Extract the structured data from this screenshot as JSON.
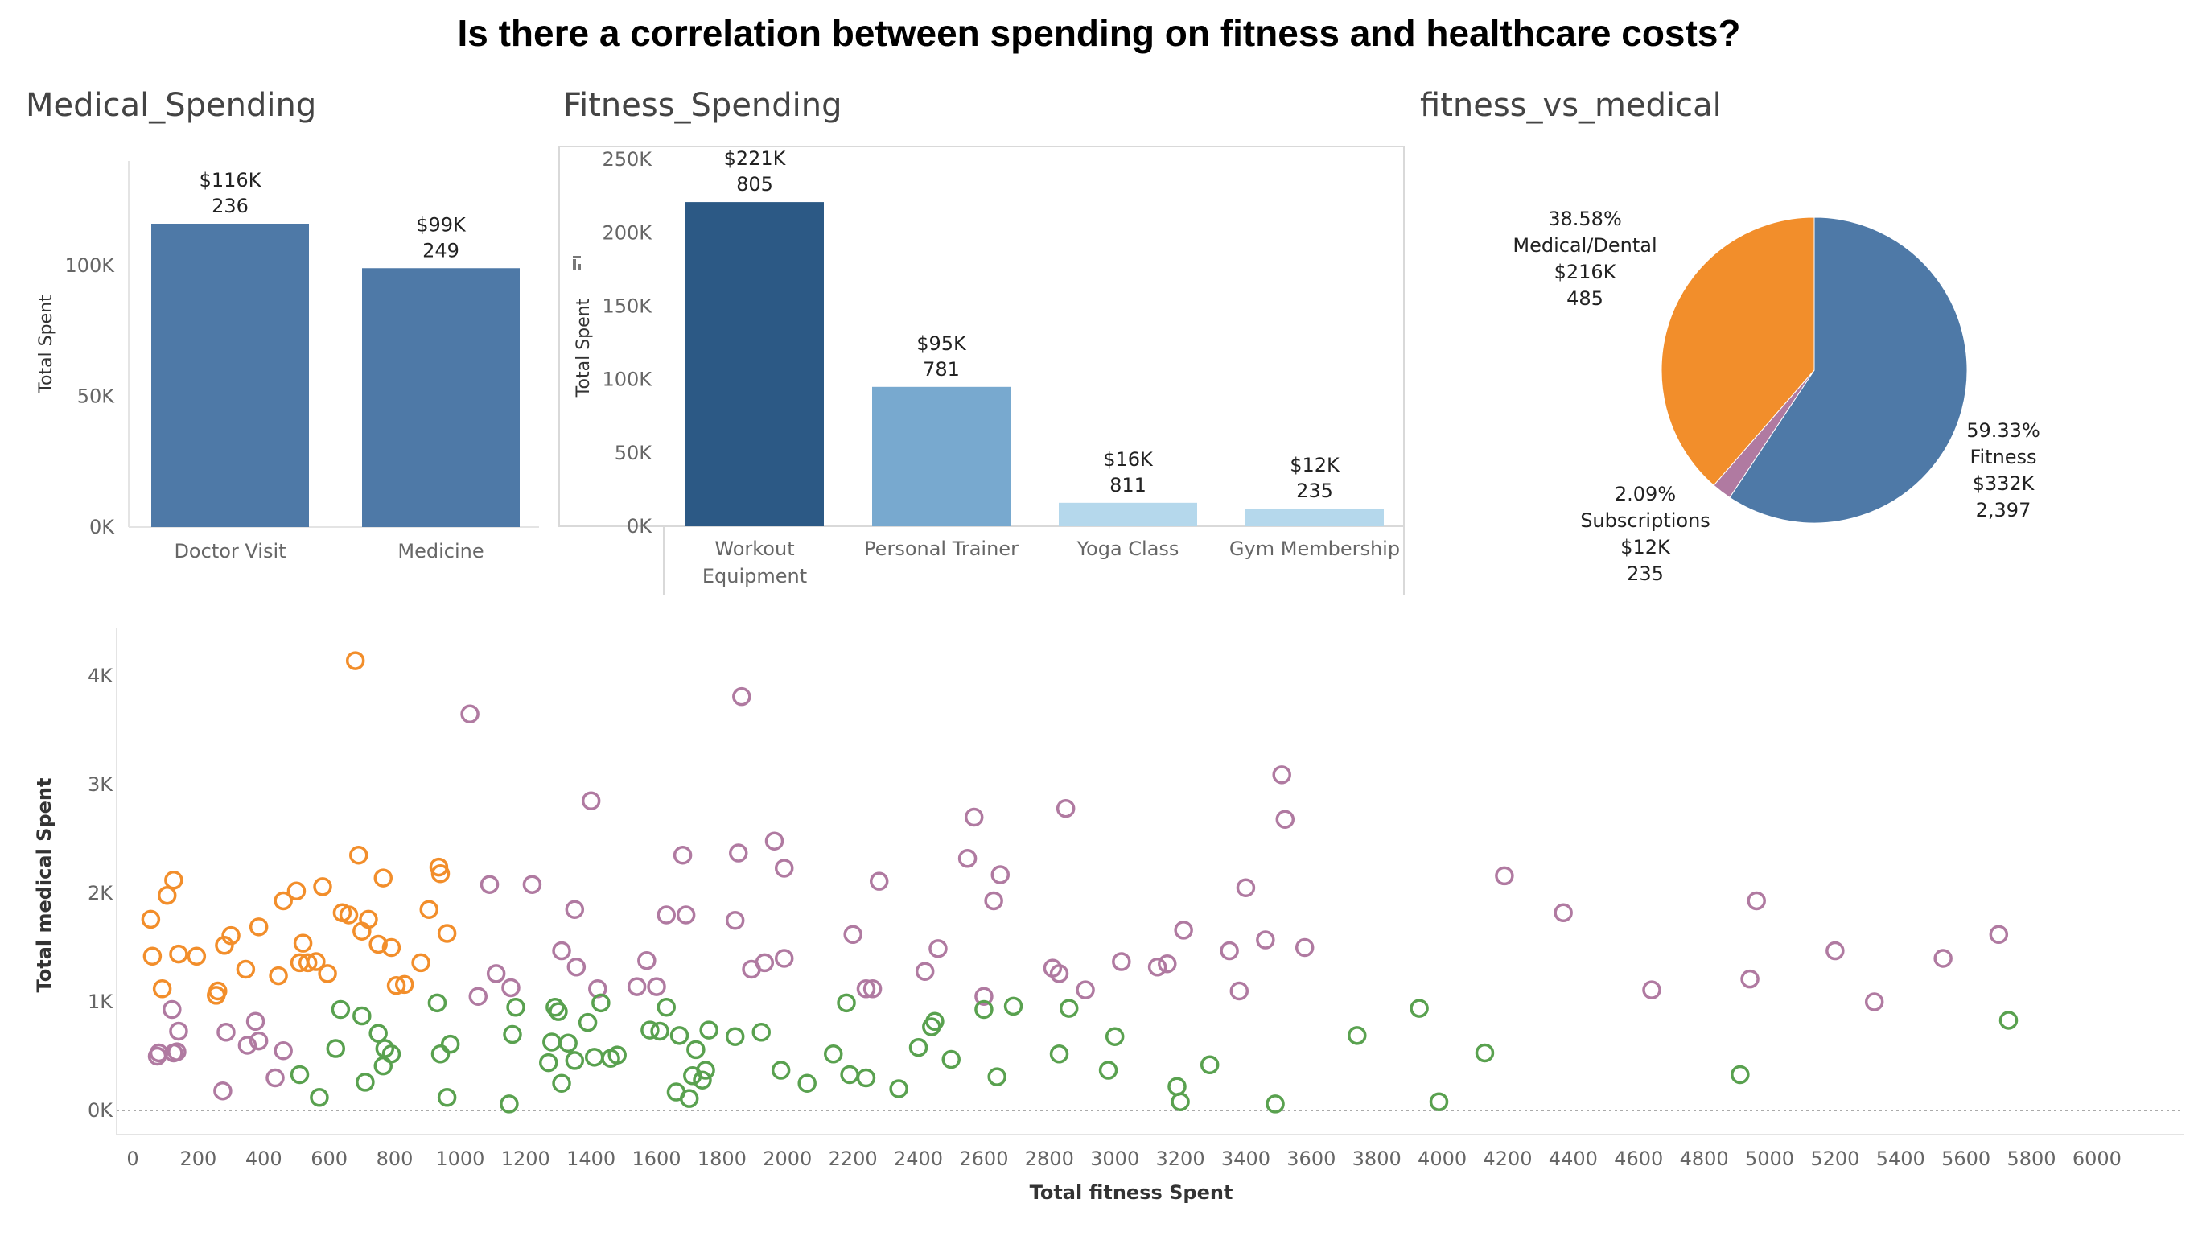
{
  "title": "Is there a correlation between spending on fitness and healthcare costs?",
  "colors": {
    "medical_bar": "#4e79a7",
    "fitness_bars": [
      "#2c5985",
      "#78a9cf",
      "#b5d8ec",
      "#b5d8ec"
    ],
    "pie_fitness": "#4e79a7",
    "pie_medical": "#f28e2b",
    "pie_subscriptions": "#b07aa1",
    "scatter": {
      "orange": "#f28e2b",
      "purple": "#b07aa1",
      "green": "#59a14f"
    }
  },
  "chart_data": [
    {
      "type": "bar",
      "id": "medical",
      "title": "Medical_Spending",
      "ylabel": "Total Spent",
      "categories": [
        "Doctor Visit",
        "Medicine"
      ],
      "values": [
        116000,
        99000
      ],
      "value_labels": [
        "$116K",
        "$99K"
      ],
      "count_labels": [
        "236",
        "249"
      ],
      "yticks": [
        "0K",
        "50K",
        "100K"
      ],
      "ylim": [
        0,
        140000
      ]
    },
    {
      "type": "bar",
      "id": "fitness",
      "title": "Fitness_Spending",
      "ylabel": "Total Spent",
      "categories": [
        "Workout Equipment",
        "Personal Trainer",
        "Yoga Class",
        "Gym Membership"
      ],
      "values": [
        221000,
        95000,
        16000,
        12000
      ],
      "value_labels": [
        "$221K",
        "$95K",
        "$16K",
        "$12K"
      ],
      "count_labels": [
        "805",
        "781",
        "811",
        "235"
      ],
      "yticks": [
        "0K",
        "50K",
        "100K",
        "150K",
        "200K",
        "250K"
      ],
      "ylim": [
        0,
        260000
      ]
    },
    {
      "type": "pie",
      "id": "pie",
      "title": "fitness_vs_medical",
      "slices": [
        {
          "name": "Fitness",
          "percent": 59.33,
          "pct_label": "59.33%",
          "value": "$332K",
          "count": "2,397"
        },
        {
          "name": "Subscriptions",
          "percent": 2.09,
          "pct_label": "2.09%",
          "value": "$12K",
          "count": "235"
        },
        {
          "name": "Medical/Dental",
          "percent": 38.58,
          "pct_label": "38.58%",
          "value": "$216K",
          "count": "485"
        }
      ]
    },
    {
      "type": "scatter",
      "id": "scatter",
      "xlabel": "Total fitness Spent",
      "ylabel": "Total medical Spent",
      "xlim": [
        0,
        6100
      ],
      "ylim": [
        0,
        4400
      ],
      "xticks": [
        "0",
        "200",
        "400",
        "600",
        "800",
        "1000",
        "1200",
        "1400",
        "1600",
        "1800",
        "2000",
        "2200",
        "2400",
        "2600",
        "2800",
        "3000",
        "3200",
        "3400",
        "3600",
        "3800",
        "4000",
        "4200",
        "4400",
        "4600",
        "4800",
        "5000",
        "5200",
        "5400",
        "5600",
        "5800",
        "6000"
      ],
      "yticks": [
        "0K",
        "1K",
        "2K",
        "3K",
        "4K"
      ],
      "series": [
        {
          "color": "orange",
          "points": [
            [
              680,
              4140
            ],
            [
              55,
              1760
            ],
            [
              125,
              2120
            ],
            [
              105,
              1980
            ],
            [
              60,
              1420
            ],
            [
              140,
              1440
            ],
            [
              90,
              1120
            ],
            [
              195,
              1420
            ],
            [
              260,
              1100
            ],
            [
              255,
              1060
            ],
            [
              280,
              1520
            ],
            [
              300,
              1610
            ],
            [
              345,
              1300
            ],
            [
              385,
              1690
            ],
            [
              445,
              1240
            ],
            [
              460,
              1930
            ],
            [
              500,
              2020
            ],
            [
              510,
              1360
            ],
            [
              520,
              1540
            ],
            [
              535,
              1360
            ],
            [
              560,
              1370
            ],
            [
              580,
              2060
            ],
            [
              595,
              1260
            ],
            [
              640,
              1820
            ],
            [
              660,
              1800
            ],
            [
              690,
              2350
            ],
            [
              700,
              1650
            ],
            [
              720,
              1760
            ],
            [
              750,
              1530
            ],
            [
              765,
              2140
            ],
            [
              790,
              1500
            ],
            [
              805,
              1150
            ],
            [
              830,
              1160
            ],
            [
              880,
              1360
            ],
            [
              905,
              1850
            ],
            [
              935,
              2240
            ],
            [
              940,
              2180
            ],
            [
              960,
              1630
            ]
          ]
        },
        {
          "color": "purple",
          "points": [
            [
              75,
              500
            ],
            [
              80,
              530
            ],
            [
              120,
              930
            ],
            [
              125,
              530
            ],
            [
              135,
              540
            ],
            [
              140,
              730
            ],
            [
              275,
              180
            ],
            [
              285,
              720
            ],
            [
              350,
              600
            ],
            [
              375,
              820
            ],
            [
              385,
              640
            ],
            [
              435,
              300
            ],
            [
              460,
              550
            ],
            [
              1030,
              3650
            ],
            [
              1055,
              1050
            ],
            [
              1090,
              2080
            ],
            [
              1110,
              1260
            ],
            [
              1155,
              1130
            ],
            [
              1220,
              2080
            ],
            [
              1310,
              1470
            ],
            [
              1355,
              1320
            ],
            [
              1350,
              1850
            ],
            [
              1400,
              2850
            ],
            [
              1420,
              1120
            ],
            [
              1540,
              1140
            ],
            [
              1570,
              1380
            ],
            [
              1600,
              1140
            ],
            [
              1630,
              1800
            ],
            [
              1680,
              2350
            ],
            [
              1690,
              1800
            ],
            [
              1850,
              2370
            ],
            [
              1840,
              1750
            ],
            [
              1860,
              3810
            ],
            [
              1890,
              1300
            ],
            [
              1930,
              1360
            ],
            [
              1960,
              2480
            ],
            [
              1990,
              1400
            ],
            [
              1990,
              2230
            ],
            [
              2200,
              1620
            ],
            [
              2240,
              1120
            ],
            [
              2260,
              1120
            ],
            [
              2280,
              2110
            ],
            [
              2420,
              1280
            ],
            [
              2460,
              1490
            ],
            [
              2550,
              2320
            ],
            [
              2570,
              2700
            ],
            [
              2600,
              1050
            ],
            [
              2630,
              1930
            ],
            [
              2650,
              2170
            ],
            [
              2810,
              1310
            ],
            [
              2830,
              1260
            ],
            [
              2850,
              2780
            ],
            [
              2910,
              1110
            ],
            [
              3020,
              1370
            ],
            [
              3130,
              1320
            ],
            [
              3160,
              1350
            ],
            [
              3210,
              1660
            ],
            [
              3350,
              1470
            ],
            [
              3380,
              1100
            ],
            [
              3400,
              2050
            ],
            [
              3460,
              1570
            ],
            [
              3510,
              3090
            ],
            [
              3520,
              2680
            ],
            [
              3580,
              1500
            ],
            [
              4190,
              2160
            ],
            [
              4370,
              1820
            ],
            [
              4640,
              1110
            ],
            [
              4940,
              1210
            ],
            [
              4960,
              1930
            ],
            [
              5200,
              1470
            ],
            [
              5320,
              1000
            ],
            [
              5530,
              1400
            ],
            [
              5700,
              1620
            ]
          ]
        },
        {
          "color": "green",
          "points": [
            [
              510,
              330
            ],
            [
              570,
              120
            ],
            [
              620,
              570
            ],
            [
              635,
              930
            ],
            [
              700,
              870
            ],
            [
              710,
              260
            ],
            [
              750,
              710
            ],
            [
              765,
              410
            ],
            [
              770,
              570
            ],
            [
              790,
              520
            ],
            [
              930,
              990
            ],
            [
              940,
              520
            ],
            [
              960,
              120
            ],
            [
              970,
              610
            ],
            [
              1150,
              60
            ],
            [
              1160,
              700
            ],
            [
              1170,
              950
            ],
            [
              1270,
              440
            ],
            [
              1280,
              630
            ],
            [
              1290,
              950
            ],
            [
              1300,
              910
            ],
            [
              1310,
              250
            ],
            [
              1330,
              620
            ],
            [
              1350,
              460
            ],
            [
              1390,
              810
            ],
            [
              1410,
              490
            ],
            [
              1430,
              990
            ],
            [
              1460,
              480
            ],
            [
              1480,
              510
            ],
            [
              1580,
              740
            ],
            [
              1610,
              730
            ],
            [
              1630,
              950
            ],
            [
              1660,
              170
            ],
            [
              1670,
              690
            ],
            [
              1700,
              110
            ],
            [
              1710,
              320
            ],
            [
              1720,
              560
            ],
            [
              1740,
              280
            ],
            [
              1750,
              370
            ],
            [
              1760,
              740
            ],
            [
              1840,
              680
            ],
            [
              1920,
              720
            ],
            [
              1980,
              370
            ],
            [
              2060,
              250
            ],
            [
              2140,
              520
            ],
            [
              2180,
              990
            ],
            [
              2190,
              330
            ],
            [
              2240,
              300
            ],
            [
              2340,
              200
            ],
            [
              2400,
              580
            ],
            [
              2440,
              770
            ],
            [
              2450,
              820
            ],
            [
              2500,
              470
            ],
            [
              2600,
              930
            ],
            [
              2640,
              310
            ],
            [
              2690,
              960
            ],
            [
              2830,
              520
            ],
            [
              2860,
              940
            ],
            [
              2980,
              370
            ],
            [
              3000,
              680
            ],
            [
              3190,
              220
            ],
            [
              3200,
              80
            ],
            [
              3290,
              420
            ],
            [
              3490,
              60
            ],
            [
              3740,
              690
            ],
            [
              3930,
              940
            ],
            [
              3990,
              80
            ],
            [
              4130,
              530
            ],
            [
              4910,
              330
            ],
            [
              5730,
              830
            ]
          ]
        }
      ]
    }
  ]
}
